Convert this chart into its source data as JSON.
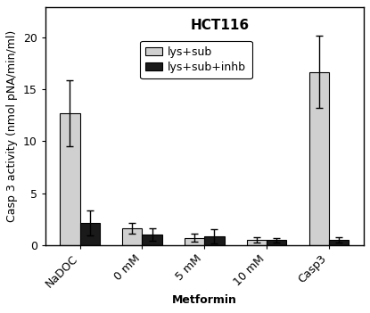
{
  "categories": [
    "NaDOC",
    "0 mM",
    "5 mM",
    "10 mM",
    "Casp3"
  ],
  "lys_sub": [
    12.7,
    1.6,
    0.7,
    0.5,
    16.7
  ],
  "lys_sub_inhb": [
    2.1,
    1.0,
    0.8,
    0.45,
    0.5
  ],
  "lys_sub_err": [
    3.2,
    0.5,
    0.35,
    0.25,
    3.5
  ],
  "lys_sub_inhb_err": [
    1.2,
    0.6,
    0.7,
    0.2,
    0.25
  ],
  "color_lys_sub": "#d0d0d0",
  "color_lys_sub_inhb": "#1a1a1a",
  "xlabel": "Metformin",
  "ylabel": "Casp 3 activity (nmol pNA/min/ml)",
  "title": "HCT116",
  "ylim": [
    0,
    23
  ],
  "yticks": [
    0,
    5,
    10,
    15,
    20
  ],
  "legend_labels": [
    "lys+sub",
    "lys+sub+inhb"
  ],
  "bar_width": 0.32,
  "title_fontsize": 11,
  "axis_fontsize": 9,
  "tick_fontsize": 9,
  "legend_fontsize": 9
}
